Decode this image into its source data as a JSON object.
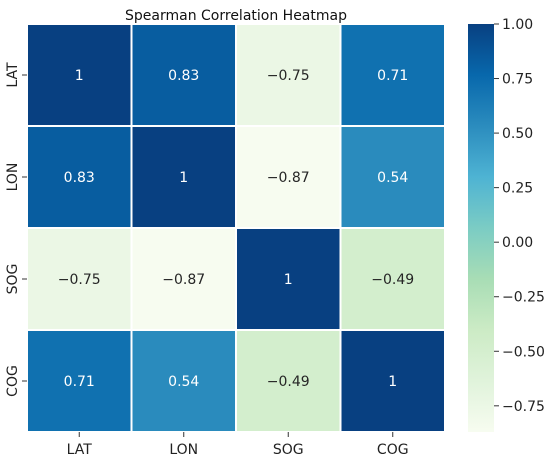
{
  "chart_data": {
    "type": "heatmap",
    "title": "Spearman Correlation Heatmap",
    "x_categories": [
      "LAT",
      "LON",
      "SOG",
      "COG"
    ],
    "y_categories": [
      "LAT",
      "LON",
      "SOG",
      "COG"
    ],
    "values": [
      [
        1,
        0.83,
        -0.75,
        0.71
      ],
      [
        0.83,
        1,
        -0.87,
        0.54
      ],
      [
        -0.75,
        -0.87,
        1,
        -0.49
      ],
      [
        0.71,
        0.54,
        -0.49,
        1
      ]
    ],
    "cell_labels": [
      [
        "1",
        "0.83",
        "−0.75",
        "0.71"
      ],
      [
        "0.83",
        "1",
        "−0.87",
        "0.54"
      ],
      [
        "−0.75",
        "−0.87",
        "1",
        "−0.49"
      ],
      [
        "0.71",
        "0.54",
        "−0.49",
        "1"
      ]
    ],
    "colormap": "GnBu",
    "colorbar": {
      "range": [
        -0.87,
        1.0
      ],
      "ticks": [
        1.0,
        0.75,
        0.5,
        0.25,
        0.0,
        -0.25,
        -0.5,
        -0.75
      ],
      "tick_labels": [
        "1.00",
        "0.75",
        "0.50",
        "0.25",
        "0.00",
        "−0.25",
        "−0.50",
        "−0.75"
      ]
    },
    "cell_border_color": "#ffffff"
  }
}
